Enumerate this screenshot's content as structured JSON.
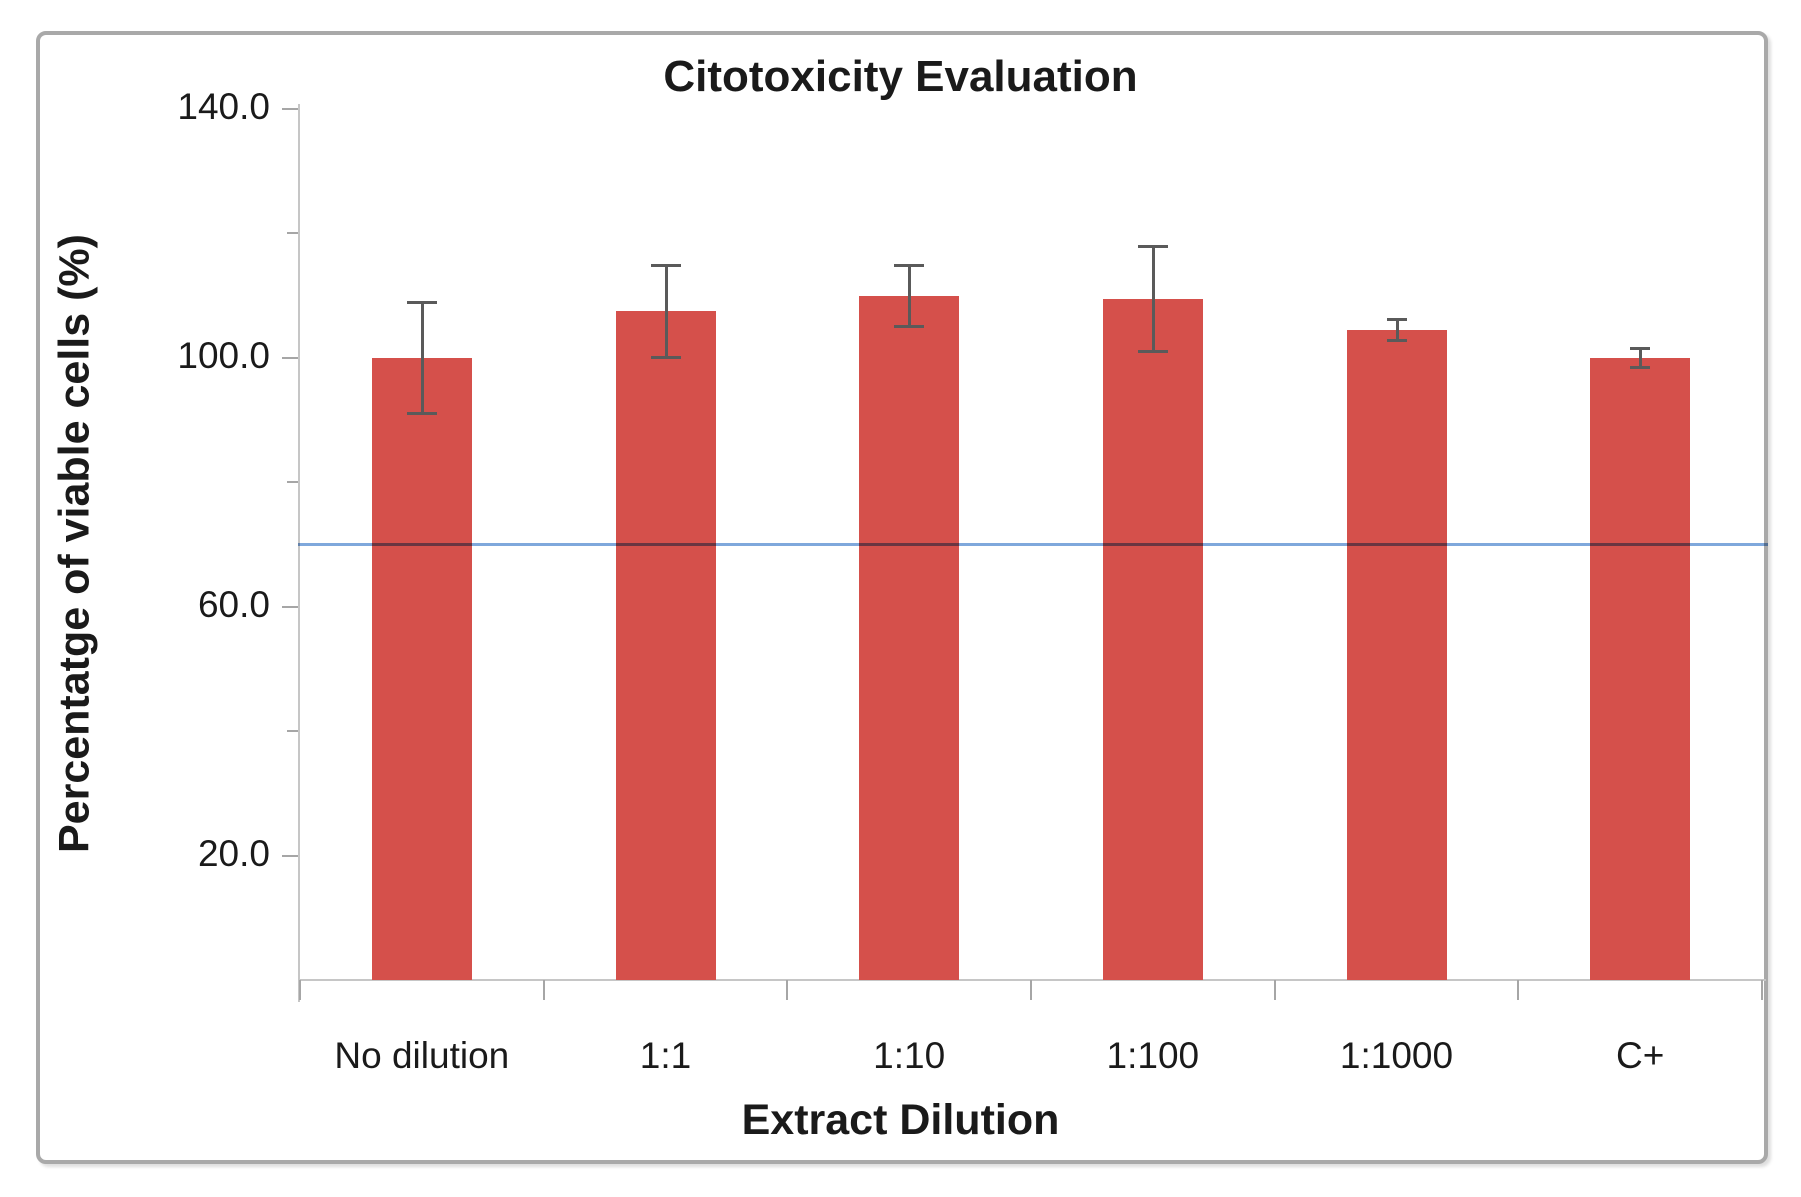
{
  "chart_data": {
    "type": "bar",
    "title": "Citotoxicity Evaluation",
    "xlabel": "Extract Dilution",
    "ylabel": "Percentatge of viable cells (%)",
    "categories": [
      "No dilution",
      "1:1",
      "1:10",
      "1:100",
      "1:1000",
      "C+"
    ],
    "values": [
      100.0,
      107.5,
      110.0,
      109.5,
      104.5,
      100.0
    ],
    "error_bars": [
      9.0,
      7.5,
      5.0,
      8.5,
      1.8,
      1.6
    ],
    "ylim": [
      0,
      140
    ],
    "y_major_ticks": [
      {
        "label": "140.0",
        "value": 140
      },
      {
        "label": "100.0",
        "value": 100
      },
      {
        "label": "60.0",
        "value": 60
      },
      {
        "label": "20.0",
        "value": 20
      }
    ],
    "y_minor_ticks": [
      120,
      80,
      40
    ],
    "threshold_line": {
      "value": 70,
      "color": "#7FA8DC"
    },
    "bar_color": "#D5504B",
    "error_bar_color": "#5A5A5A",
    "axis_color": "#C6C6C6",
    "tick_color": "#A6A6A6",
    "text_color": "#1A1A1A",
    "frame_border_color": "#A9A9A9",
    "grid": false,
    "legend": false
  }
}
